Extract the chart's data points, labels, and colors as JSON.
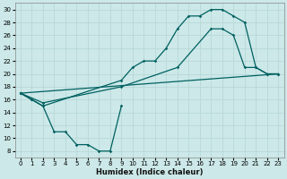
{
  "xlabel": "Humidex (Indice chaleur)",
  "bg_color": "#cce8e8",
  "grid_color": "#b8d8d8",
  "line_color": "#006060",
  "xlim": [
    -0.5,
    23.5
  ],
  "ylim": [
    7,
    31
  ],
  "xticks": [
    0,
    1,
    2,
    3,
    4,
    5,
    6,
    7,
    8,
    9,
    10,
    11,
    12,
    13,
    14,
    15,
    16,
    17,
    18,
    19,
    20,
    21,
    22,
    23
  ],
  "yticks": [
    8,
    10,
    12,
    14,
    16,
    18,
    20,
    22,
    24,
    26,
    28,
    30
  ],
  "curve_upper": {
    "x": [
      0,
      1,
      2,
      9,
      10,
      11,
      12,
      13,
      14,
      15,
      16,
      17,
      18,
      19,
      20,
      21,
      22,
      23
    ],
    "y": [
      17,
      16,
      15,
      19,
      21,
      22,
      22,
      24,
      27,
      29,
      29,
      30,
      30,
      29,
      28,
      21,
      20,
      20
    ]
  },
  "curve_lower": {
    "x": [
      0,
      1,
      2,
      3,
      4,
      5,
      6,
      7,
      8,
      9
    ],
    "y": [
      17,
      16,
      15,
      11,
      11,
      9,
      9,
      8,
      8,
      15
    ]
  },
  "curve_diagonal": {
    "x": [
      0,
      2,
      9,
      14,
      17,
      18,
      19,
      20,
      21,
      22,
      23
    ],
    "y": [
      17,
      15.5,
      18,
      21,
      27,
      27,
      26,
      21,
      21,
      20,
      20
    ]
  },
  "curve_straight": {
    "x": [
      0,
      23
    ],
    "y": [
      17,
      20
    ]
  }
}
